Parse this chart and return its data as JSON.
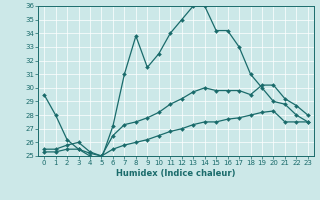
{
  "xlabel": "Humidex (Indice chaleur)",
  "ylabel": "",
  "xlim": [
    -0.5,
    23.5
  ],
  "ylim": [
    25,
    36
  ],
  "yticks": [
    25,
    26,
    27,
    28,
    29,
    30,
    31,
    32,
    33,
    34,
    35,
    36
  ],
  "xticks": [
    0,
    1,
    2,
    3,
    4,
    5,
    6,
    7,
    8,
    9,
    10,
    11,
    12,
    13,
    14,
    15,
    16,
    17,
    18,
    19,
    20,
    21,
    22,
    23
  ],
  "bg_color": "#cce8e8",
  "line_color": "#1a6b6b",
  "line1": {
    "x": [
      0,
      1,
      2,
      3,
      4,
      5,
      6,
      7,
      8,
      9,
      10,
      11,
      12,
      13,
      14,
      15,
      16,
      17,
      18,
      19,
      20,
      21,
      22,
      23
    ],
    "y": [
      29.5,
      28.0,
      26.2,
      25.5,
      25.0,
      24.8,
      27.2,
      31.0,
      33.8,
      31.5,
      32.5,
      34.0,
      35.0,
      36.0,
      36.0,
      34.2,
      34.2,
      33.0,
      31.0,
      30.0,
      29.0,
      28.8,
      28.0,
      27.5
    ]
  },
  "line2": {
    "x": [
      0,
      1,
      2,
      3,
      4,
      5,
      6,
      7,
      8,
      9,
      10,
      11,
      12,
      13,
      14,
      15,
      16,
      17,
      18,
      19,
      20,
      21,
      22,
      23
    ],
    "y": [
      25.5,
      25.5,
      25.8,
      26.0,
      25.3,
      25.0,
      26.5,
      27.3,
      27.5,
      27.8,
      28.2,
      28.8,
      29.2,
      29.7,
      30.0,
      29.8,
      29.8,
      29.8,
      29.5,
      30.2,
      30.2,
      29.2,
      28.7,
      28.0
    ]
  },
  "line3": {
    "x": [
      0,
      1,
      2,
      3,
      4,
      5,
      6,
      7,
      8,
      9,
      10,
      11,
      12,
      13,
      14,
      15,
      16,
      17,
      18,
      19,
      20,
      21,
      22,
      23
    ],
    "y": [
      25.3,
      25.3,
      25.5,
      25.5,
      25.2,
      25.0,
      25.5,
      25.8,
      26.0,
      26.2,
      26.5,
      26.8,
      27.0,
      27.3,
      27.5,
      27.5,
      27.7,
      27.8,
      28.0,
      28.2,
      28.3,
      27.5,
      27.5,
      27.5
    ]
  }
}
